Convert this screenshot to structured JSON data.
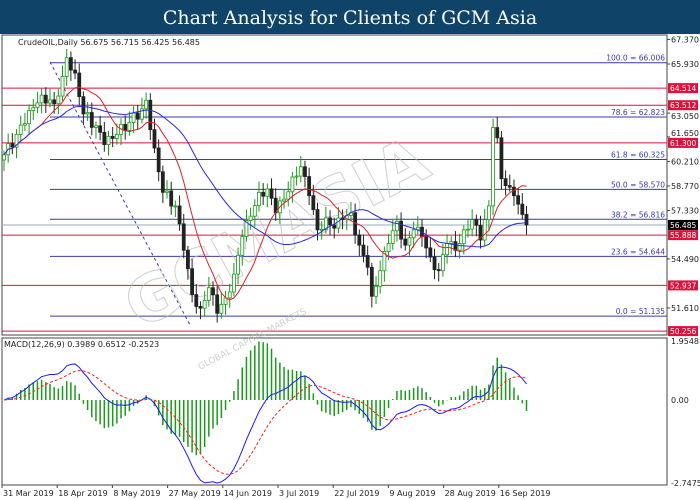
{
  "title": "Chart Analysis for Clients of GCM Asia",
  "chart_data": {
    "type": "candlestick",
    "symbol_header": "CrudeOIL,Daily  56.675 56.715 56.425 56.485",
    "ohlc_last": {
      "open": 56.675,
      "high": 56.715,
      "low": 56.425,
      "close": 56.485
    },
    "price_axis_ticks": [
      "67.370",
      "65.930",
      "63.050",
      "61.650",
      "60.210",
      "58.770",
      "57.330",
      "54.490",
      "51.610"
    ],
    "ylim": [
      50.256,
      67.37
    ],
    "x_tick_labels": [
      "31 Mar 2019",
      "18 Apr 2019",
      "8 May 2019",
      "27 May 2019",
      "14 Jun 2019",
      "3 Jul 2019",
      "22 Jul 2019",
      "9 Aug 2019",
      "28 Aug 2019",
      "16 Sep 2019"
    ],
    "close_keypoints": [
      [
        0,
        60.6
      ],
      [
        3,
        61.8
      ],
      [
        6,
        63.2
      ],
      [
        9,
        64.1
      ],
      [
        12,
        63.6
      ],
      [
        14,
        65.2
      ],
      [
        15,
        66.3
      ],
      [
        17,
        65.4
      ],
      [
        19,
        63.0
      ],
      [
        22,
        62.3
      ],
      [
        24,
        61.2
      ],
      [
        27,
        61.8
      ],
      [
        30,
        62.5
      ],
      [
        33,
        63.3
      ],
      [
        34,
        63.8
      ],
      [
        36,
        61.0
      ],
      [
        38,
        58.4
      ],
      [
        41,
        57.6
      ],
      [
        43,
        55.0
      ],
      [
        45,
        52.4
      ],
      [
        47,
        51.6
      ],
      [
        49,
        52.8
      ],
      [
        51,
        51.3
      ],
      [
        53,
        52.2
      ],
      [
        55,
        53.6
      ],
      [
        57,
        55.8
      ],
      [
        59,
        57.0
      ],
      [
        61,
        58.4
      ],
      [
        63,
        58.6
      ],
      [
        65,
        57.2
      ],
      [
        67,
        58.0
      ],
      [
        69,
        59.3
      ],
      [
        71,
        59.9
      ],
      [
        73,
        58.2
      ],
      [
        75,
        56.2
      ],
      [
        77,
        56.9
      ],
      [
        79,
        56.3
      ],
      [
        81,
        56.8
      ],
      [
        83,
        57.2
      ],
      [
        85,
        55.3
      ],
      [
        87,
        54.0
      ],
      [
        88,
        52.3
      ],
      [
        90,
        53.8
      ],
      [
        92,
        55.4
      ],
      [
        94,
        56.7
      ],
      [
        96,
        55.3
      ],
      [
        98,
        56.2
      ],
      [
        100,
        55.8
      ],
      [
        102,
        54.6
      ],
      [
        104,
        53.8
      ],
      [
        106,
        55.4
      ],
      [
        108,
        55.0
      ],
      [
        110,
        56.2
      ],
      [
        112,
        56.8
      ],
      [
        114,
        55.6
      ],
      [
        116,
        57.6
      ],
      [
        117,
        62.2
      ],
      [
        118,
        61.6
      ],
      [
        119,
        59.2
      ],
      [
        121,
        58.7
      ],
      [
        122,
        58.2
      ],
      [
        124,
        57.1
      ],
      [
        125,
        56.485
      ]
    ],
    "current_price": "56.485",
    "fibonacci_levels": [
      {
        "label": "100.0 = 66.006",
        "value": 66.006
      },
      {
        "label": "78.6  = 62.823",
        "value": 62.823
      },
      {
        "label": "61.8 = 60.325",
        "value": 60.325
      },
      {
        "label": "50.0 = 58.570",
        "value": 58.57
      },
      {
        "label": "38.2 = 56.816",
        "value": 56.816
      },
      {
        "label": "23.6 = 54.644",
        "value": 54.644
      },
      {
        "label": "0.0 = 51.135",
        "value": 51.135
      }
    ],
    "support_resistance": [
      "64.514",
      "63.512",
      "61.300",
      "55.888",
      "52.937",
      "50.256"
    ],
    "indicators": {
      "ma_fast_color": "#e0202a",
      "ma_slow_color": "#2a2ae0",
      "ma_fast_period": 10,
      "ma_slow_period": 30
    },
    "macd": {
      "label": "MACD(12,26,9) 0.3989 0.6512 -0.2523",
      "ticks": [
        "1.9548",
        "0.00",
        "-2.7475"
      ],
      "ylim": [
        -2.7475,
        1.9548
      ],
      "macd_color": "#1a1aff",
      "signal_color": "#ff2020",
      "histogram_color": "#1a9a1a"
    },
    "colors": {
      "fib": "#3a3aa8",
      "sr": "#e0103c",
      "bull": "#1a9a1a",
      "bear": "#222222",
      "price_tag": "#000000"
    },
    "watermark": "GCMASIA",
    "watermark_sub": "GLOBAL CAPITAL MARKETS"
  }
}
